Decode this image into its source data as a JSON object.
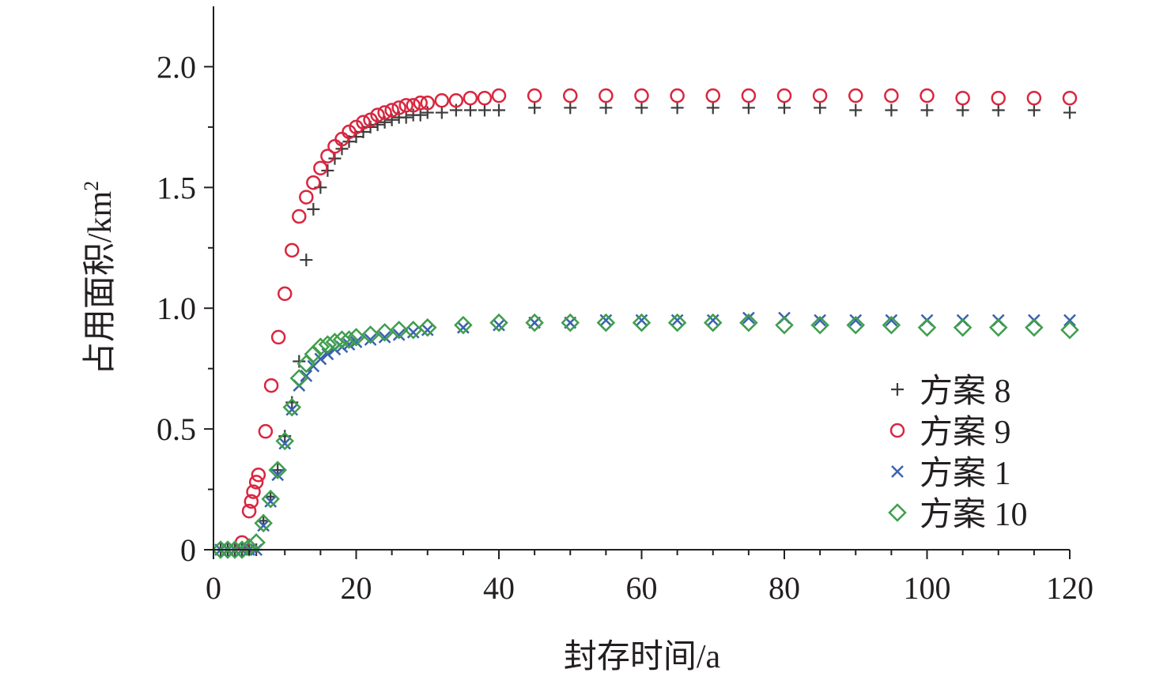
{
  "chart_data": {
    "type": "scatter",
    "xlabel": "封存时间/a",
    "ylabel": "占用面积/km",
    "ylabel_sup": "2",
    "xlim": [
      0,
      120
    ],
    "ylim": [
      0,
      2.25
    ],
    "xticks": [
      0,
      20,
      40,
      60,
      80,
      100,
      120
    ],
    "xtick_labels": [
      "0",
      "20",
      "40",
      "60",
      "80",
      "100",
      "120"
    ],
    "yticks": [
      0,
      0.5,
      1.0,
      1.5,
      2.0
    ],
    "ytick_labels": [
      "0",
      "0.5",
      "1.0",
      "1.5",
      "2.0"
    ],
    "grid": false,
    "legend_position": "right-middle",
    "series": [
      {
        "name": "方案 8",
        "marker": "plus",
        "color": "#3c3c3c",
        "points": [
          [
            1,
            0
          ],
          [
            2,
            0
          ],
          [
            3,
            0
          ],
          [
            4,
            0
          ],
          [
            5,
            0
          ],
          [
            6,
            0
          ],
          [
            7,
            0.12
          ],
          [
            8,
            0.22
          ],
          [
            9,
            0.33
          ],
          [
            10,
            0.47
          ],
          [
            11,
            0.61
          ],
          [
            12,
            0.78
          ],
          [
            13,
            1.2
          ],
          [
            14,
            1.41
          ],
          [
            15,
            1.5
          ],
          [
            16,
            1.57
          ],
          [
            17,
            1.62
          ],
          [
            18,
            1.66
          ],
          [
            19,
            1.69
          ],
          [
            20,
            1.71
          ],
          [
            21,
            1.73
          ],
          [
            22,
            1.75
          ],
          [
            23,
            1.76
          ],
          [
            24,
            1.77
          ],
          [
            25,
            1.78
          ],
          [
            26,
            1.79
          ],
          [
            27,
            1.79
          ],
          [
            28,
            1.8
          ],
          [
            29,
            1.8
          ],
          [
            30,
            1.81
          ],
          [
            32,
            1.81
          ],
          [
            34,
            1.82
          ],
          [
            36,
            1.82
          ],
          [
            38,
            1.82
          ],
          [
            40,
            1.82
          ],
          [
            45,
            1.83
          ],
          [
            50,
            1.83
          ],
          [
            55,
            1.83
          ],
          [
            60,
            1.83
          ],
          [
            65,
            1.83
          ],
          [
            70,
            1.83
          ],
          [
            75,
            1.83
          ],
          [
            80,
            1.83
          ],
          [
            85,
            1.83
          ],
          [
            90,
            1.82
          ],
          [
            95,
            1.82
          ],
          [
            100,
            1.82
          ],
          [
            105,
            1.82
          ],
          [
            110,
            1.82
          ],
          [
            115,
            1.82
          ],
          [
            120,
            1.81
          ]
        ]
      },
      {
        "name": "方案 9",
        "marker": "circle",
        "color": "#d9263f",
        "points": [
          [
            4,
            0.03
          ],
          [
            5,
            0.16
          ],
          [
            5.3,
            0.2
          ],
          [
            5.6,
            0.24
          ],
          [
            6,
            0.28
          ],
          [
            6.3,
            0.31
          ],
          [
            7.3,
            0.49
          ],
          [
            8.1,
            0.68
          ],
          [
            9.1,
            0.88
          ],
          [
            10,
            1.06
          ],
          [
            11,
            1.24
          ],
          [
            12,
            1.38
          ],
          [
            13,
            1.46
          ],
          [
            14,
            1.52
          ],
          [
            15,
            1.58
          ],
          [
            16,
            1.63
          ],
          [
            17,
            1.67
          ],
          [
            18,
            1.7
          ],
          [
            19,
            1.73
          ],
          [
            20,
            1.75
          ],
          [
            21,
            1.77
          ],
          [
            22,
            1.78
          ],
          [
            23,
            1.8
          ],
          [
            24,
            1.81
          ],
          [
            25,
            1.82
          ],
          [
            26,
            1.83
          ],
          [
            27,
            1.84
          ],
          [
            28,
            1.84
          ],
          [
            29,
            1.85
          ],
          [
            30,
            1.85
          ],
          [
            32,
            1.86
          ],
          [
            34,
            1.86
          ],
          [
            36,
            1.87
          ],
          [
            38,
            1.87
          ],
          [
            40,
            1.88
          ],
          [
            45,
            1.88
          ],
          [
            50,
            1.88
          ],
          [
            55,
            1.88
          ],
          [
            60,
            1.88
          ],
          [
            65,
            1.88
          ],
          [
            70,
            1.88
          ],
          [
            75,
            1.88
          ],
          [
            80,
            1.88
          ],
          [
            85,
            1.88
          ],
          [
            90,
            1.88
          ],
          [
            95,
            1.88
          ],
          [
            100,
            1.88
          ],
          [
            105,
            1.87
          ],
          [
            110,
            1.87
          ],
          [
            115,
            1.87
          ],
          [
            120,
            1.87
          ]
        ]
      },
      {
        "name": "方案 1",
        "marker": "cross",
        "color": "#3b62b0",
        "points": [
          [
            1,
            0
          ],
          [
            2,
            0
          ],
          [
            3,
            0
          ],
          [
            4,
            0
          ],
          [
            5,
            0
          ],
          [
            6,
            0
          ],
          [
            7,
            0.1
          ],
          [
            8,
            0.2
          ],
          [
            9,
            0.31
          ],
          [
            10,
            0.44
          ],
          [
            11,
            0.58
          ],
          [
            12,
            0.68
          ],
          [
            13,
            0.72
          ],
          [
            14,
            0.76
          ],
          [
            15,
            0.79
          ],
          [
            16,
            0.81
          ],
          [
            17,
            0.83
          ],
          [
            18,
            0.84
          ],
          [
            19,
            0.85
          ],
          [
            20,
            0.86
          ],
          [
            22,
            0.87
          ],
          [
            24,
            0.88
          ],
          [
            26,
            0.89
          ],
          [
            28,
            0.9
          ],
          [
            30,
            0.91
          ],
          [
            35,
            0.92
          ],
          [
            40,
            0.93
          ],
          [
            45,
            0.94
          ],
          [
            50,
            0.94
          ],
          [
            55,
            0.95
          ],
          [
            60,
            0.95
          ],
          [
            65,
            0.95
          ],
          [
            70,
            0.95
          ],
          [
            75,
            0.96
          ],
          [
            80,
            0.96
          ],
          [
            85,
            0.95
          ],
          [
            90,
            0.95
          ],
          [
            95,
            0.95
          ],
          [
            100,
            0.95
          ],
          [
            105,
            0.95
          ],
          [
            110,
            0.95
          ],
          [
            115,
            0.95
          ],
          [
            120,
            0.95
          ]
        ]
      },
      {
        "name": "方案 10",
        "marker": "diamond",
        "color": "#3f9e4e",
        "points": [
          [
            1,
            0
          ],
          [
            2,
            0
          ],
          [
            3,
            0
          ],
          [
            4,
            0
          ],
          [
            5,
            0.01
          ],
          [
            6,
            0.03
          ],
          [
            7,
            0.11
          ],
          [
            8,
            0.21
          ],
          [
            9,
            0.33
          ],
          [
            10,
            0.45
          ],
          [
            11,
            0.59
          ],
          [
            12,
            0.71
          ],
          [
            13,
            0.77
          ],
          [
            14,
            0.81
          ],
          [
            15,
            0.84
          ],
          [
            16,
            0.85
          ],
          [
            17,
            0.86
          ],
          [
            18,
            0.87
          ],
          [
            19,
            0.87
          ],
          [
            20,
            0.88
          ],
          [
            22,
            0.89
          ],
          [
            24,
            0.9
          ],
          [
            26,
            0.91
          ],
          [
            28,
            0.91
          ],
          [
            30,
            0.92
          ],
          [
            35,
            0.93
          ],
          [
            40,
            0.94
          ],
          [
            45,
            0.94
          ],
          [
            50,
            0.94
          ],
          [
            55,
            0.94
          ],
          [
            60,
            0.94
          ],
          [
            65,
            0.94
          ],
          [
            70,
            0.94
          ],
          [
            75,
            0.94
          ],
          [
            80,
            0.93
          ],
          [
            85,
            0.93
          ],
          [
            90,
            0.93
          ],
          [
            95,
            0.93
          ],
          [
            100,
            0.92
          ],
          [
            105,
            0.92
          ],
          [
            110,
            0.92
          ],
          [
            115,
            0.92
          ],
          [
            120,
            0.91
          ]
        ]
      }
    ]
  }
}
